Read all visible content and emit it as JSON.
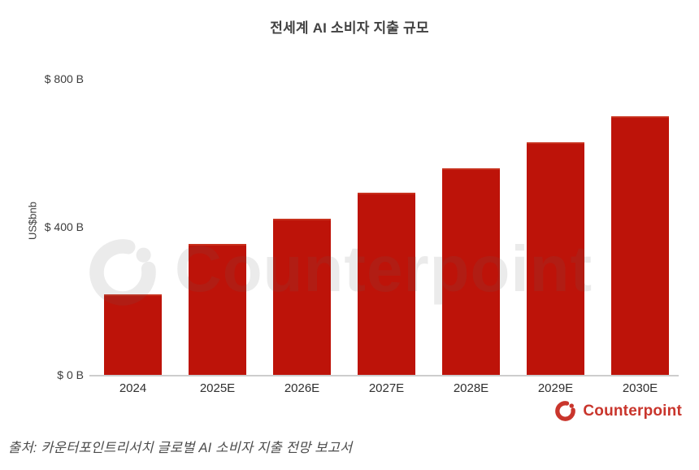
{
  "title": "전세계 AI 소비자 지출 규모",
  "chart_data": {
    "type": "bar",
    "title": "전세계 AI 소비자 지출 규모",
    "categories": [
      "2024",
      "2025E",
      "2026E",
      "2027E",
      "2028E",
      "2029E",
      "2030E"
    ],
    "values": [
      220,
      355,
      425,
      495,
      560,
      630,
      700
    ],
    "xlabel": "",
    "ylabel": "US$bnb",
    "ylim": [
      0,
      800
    ],
    "yticks": [
      {
        "value": 0,
        "label": "$ 0 B"
      },
      {
        "value": 400,
        "label": "$ 400 B"
      },
      {
        "value": 800,
        "label": "$ 800 B"
      }
    ],
    "grid": false,
    "legend": null,
    "bar_color": "#bd1309"
  },
  "watermark": {
    "text": "Counterpoint",
    "icon": "counterpoint-logo-icon"
  },
  "footer": {
    "brand_text": "Counterpoint",
    "brand_color": "#c9352c",
    "source": "출처: 카운터포인트리서치 글로벌 AI 소비자 지출 전망 보고서"
  }
}
